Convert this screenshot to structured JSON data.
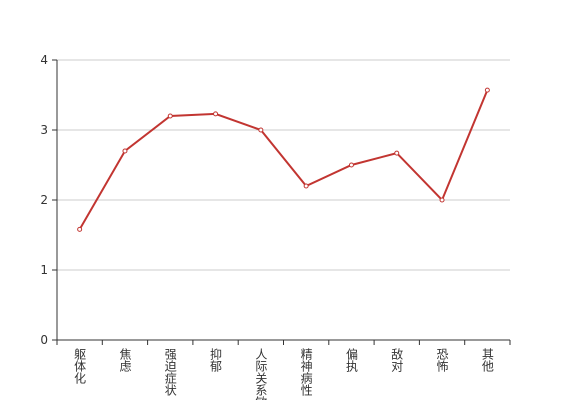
{
  "chart_data": {
    "type": "line",
    "categories": [
      "躯体化",
      "焦虑",
      "强迫症状",
      "抑郁",
      "人际关系敏感",
      "精神病性",
      "偏执",
      "敌对",
      "恐怖",
      "其他"
    ],
    "values": [
      1.58,
      2.7,
      3.2,
      3.23,
      3.0,
      2.2,
      2.5,
      2.67,
      2.0,
      3.57
    ],
    "color": "#c23531",
    "ylim": [
      0,
      4
    ],
    "yticks": [
      0,
      1,
      2,
      3,
      4
    ],
    "grid": true
  }
}
